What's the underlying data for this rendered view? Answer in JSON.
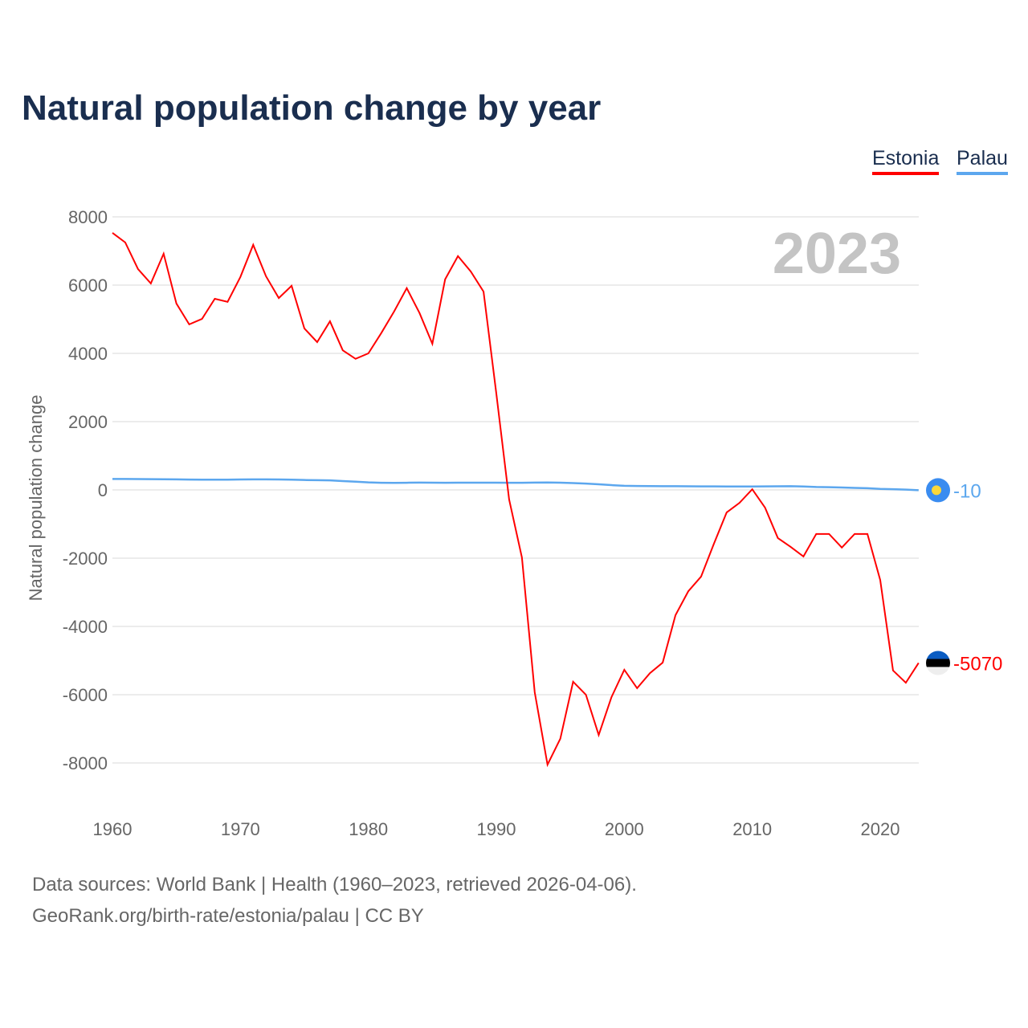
{
  "chart_data": {
    "type": "line",
    "title": "Natural population change by year",
    "xlabel": "",
    "ylabel": "Natural population change",
    "ylim": [
      -9000,
      8500
    ],
    "xlim": [
      1960,
      2023
    ],
    "yticks": [
      8000,
      6000,
      4000,
      2000,
      0,
      -2000,
      -4000,
      -6000,
      -8000
    ],
    "xticks": [
      1960,
      1970,
      1980,
      1990,
      2000,
      2010,
      2020
    ],
    "year_watermark": "2023",
    "grid": true,
    "legend_placement": "top-right",
    "x": [
      1960,
      1961,
      1962,
      1963,
      1964,
      1965,
      1966,
      1967,
      1968,
      1969,
      1970,
      1971,
      1972,
      1973,
      1974,
      1975,
      1976,
      1977,
      1978,
      1979,
      1980,
      1981,
      1982,
      1983,
      1984,
      1985,
      1986,
      1987,
      1988,
      1989,
      1990,
      1991,
      1992,
      1993,
      1994,
      1995,
      1996,
      1997,
      1998,
      1999,
      2000,
      2001,
      2002,
      2003,
      2004,
      2005,
      2006,
      2007,
      2008,
      2009,
      2010,
      2011,
      2012,
      2013,
      2014,
      2015,
      2016,
      2017,
      2018,
      2019,
      2020,
      2021,
      2022,
      2023
    ],
    "series": [
      {
        "name": "Estonia",
        "color": "#ff0000",
        "end_label": "-5070",
        "values": [
          7530,
          7250,
          6470,
          6050,
          6920,
          5460,
          4850,
          5010,
          5600,
          5510,
          6240,
          7180,
          6260,
          5620,
          5980,
          4730,
          4330,
          4940,
          4090,
          3840,
          4000,
          4590,
          5220,
          5910,
          5180,
          4280,
          6170,
          6850,
          6400,
          5810,
          2820,
          -280,
          -1980,
          -5930,
          -8050,
          -7290,
          -5620,
          -6000,
          -7180,
          -6070,
          -5270,
          -5810,
          -5370,
          -5060,
          -3670,
          -2970,
          -2540,
          -1580,
          -660,
          -380,
          20,
          -520,
          -1410,
          -1670,
          -1950,
          -1290,
          -1290,
          -1690,
          -1290,
          -1290,
          -2640,
          -5290,
          -5650,
          -5070
        ]
      },
      {
        "name": "Palau",
        "color": "#5ca7ee",
        "end_label": "-10",
        "values": [
          320,
          320,
          318,
          316,
          312,
          308,
          304,
          300,
          300,
          300,
          305,
          310,
          310,
          305,
          300,
          290,
          285,
          278,
          260,
          240,
          220,
          210,
          205,
          210,
          215,
          212,
          210,
          212,
          212,
          212,
          212,
          210,
          208,
          215,
          218,
          212,
          200,
          185,
          165,
          140,
          120,
          115,
          112,
          110,
          108,
          105,
          103,
          102,
          100,
          100,
          100,
          102,
          105,
          110,
          100,
          85,
          80,
          70,
          60,
          50,
          30,
          20,
          10,
          -10
        ]
      }
    ]
  },
  "legend": [
    "Estonia",
    "Palau"
  ],
  "footer": {
    "line1": "Data sources: World Bank | Health (1960–2023, retrieved 2026-04-06).",
    "line2": "GeoRank.org/birth-rate/estonia/palau | CC BY"
  }
}
